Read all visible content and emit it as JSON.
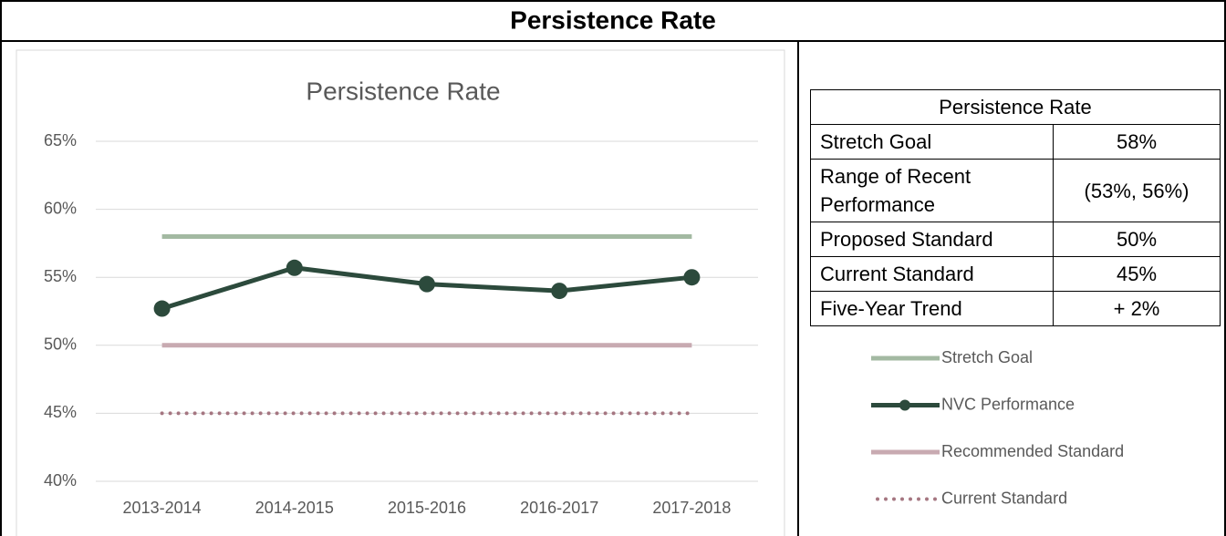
{
  "header": {
    "title": "Persistence Rate"
  },
  "chart_data": {
    "type": "line",
    "title": "Persistence Rate",
    "categories": [
      "2013-2014",
      "2014-2015",
      "2015-2016",
      "2016-2017",
      "2017-2018"
    ],
    "series": [
      {
        "name": "Stretch Goal",
        "color": "#a3b9a2",
        "line_style": "solid",
        "marker": false,
        "values": [
          58,
          58,
          58,
          58,
          58
        ]
      },
      {
        "name": "NVC Performance",
        "color": "#2c4a3c",
        "line_style": "solid",
        "marker": true,
        "values": [
          52.7,
          55.7,
          54.5,
          54.0,
          55.0
        ]
      },
      {
        "name": "Recommended Standard",
        "color": "#c8aab1",
        "line_style": "solid",
        "marker": false,
        "values": [
          50,
          50,
          50,
          50,
          50
        ]
      },
      {
        "name": "Current Standard",
        "color": "#a57681",
        "line_style": "dotted",
        "marker": false,
        "values": [
          45,
          45,
          45,
          45,
          45
        ]
      }
    ],
    "ylim": [
      40,
      65
    ],
    "yticks": [
      {
        "value": 40,
        "label": "40%"
      },
      {
        "value": 45,
        "label": "45%"
      },
      {
        "value": 50,
        "label": "50%"
      },
      {
        "value": 55,
        "label": "55%"
      },
      {
        "value": 60,
        "label": "60%"
      },
      {
        "value": 65,
        "label": "65%"
      }
    ],
    "grid": true
  },
  "table": {
    "title": "Persistence Rate",
    "rows": [
      [
        "Stretch Goal",
        "58%"
      ],
      [
        "Range of Recent Performance",
        "(53%, 56%)"
      ],
      [
        "Proposed Standard",
        "50%"
      ],
      [
        "Current Standard",
        "45%"
      ],
      [
        "Five-Year Trend",
        "+ 2%"
      ]
    ]
  }
}
